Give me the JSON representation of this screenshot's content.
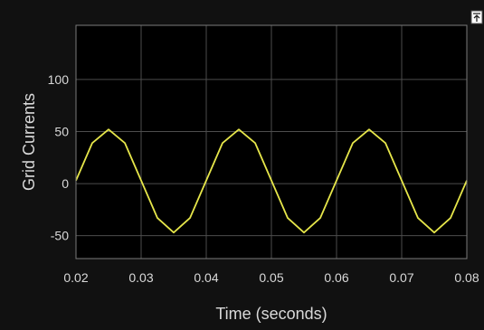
{
  "chart_data": {
    "type": "line",
    "xlabel": "Time (seconds)",
    "ylabel": "Grid Currents",
    "xlim": [
      0.02,
      0.08
    ],
    "ylim": [
      -72,
      152
    ],
    "xticks": [
      0.02,
      0.03,
      0.04,
      0.05,
      0.06,
      0.07,
      0.08
    ],
    "xtick_labels": [
      "0.02",
      "0.03",
      "0.04",
      "0.05",
      "0.06",
      "0.07",
      "0.08"
    ],
    "yticks": [
      -50,
      0,
      50,
      100
    ],
    "ytick_labels": [
      "-50",
      "0",
      "50",
      "100"
    ],
    "grid": true,
    "series": [
      {
        "color": "#e6e64a",
        "x": [
          0.02,
          0.0225,
          0.025,
          0.0275,
          0.03,
          0.0325,
          0.035,
          0.0375,
          0.04,
          0.0425,
          0.045,
          0.0475,
          0.05,
          0.0525,
          0.055,
          0.0575,
          0.06,
          0.0625,
          0.065,
          0.0675,
          0.07,
          0.0725,
          0.075,
          0.0775,
          0.08
        ],
        "y": [
          3,
          39,
          52,
          39,
          3,
          -33,
          -47,
          -33,
          3,
          39,
          52,
          39,
          3,
          -33,
          -47,
          -33,
          3,
          39,
          52,
          39,
          3,
          -33,
          -47,
          -33,
          3
        ]
      }
    ]
  },
  "colors": {
    "background": "#111111",
    "axes_background": "#000000",
    "grid": "#4d4d4d",
    "text": "#d9d9d9",
    "series": "#e6e64a"
  },
  "icons": {
    "corner": "restore-axes-icon"
  }
}
